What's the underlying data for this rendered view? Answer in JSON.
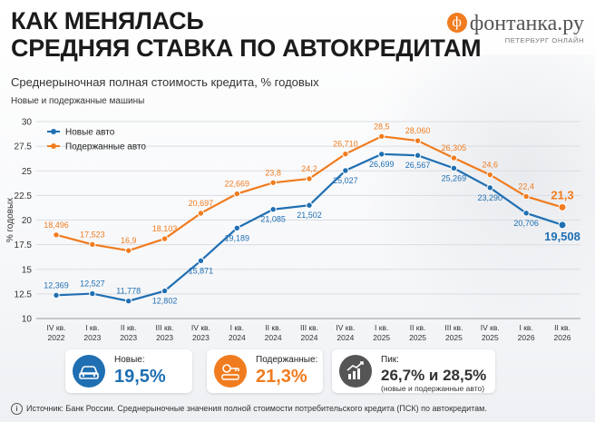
{
  "header": {
    "title_line1": "КАК МЕНЯЛАСЬ",
    "title_line2": "СРЕДНЯЯ СТАВКА ПО АВТОКРЕДИТАМ",
    "subtitle": "Среднерыночная полная стоимость кредита, % годовых",
    "note": "Новые и подержанные машины"
  },
  "logo": {
    "name": "фонтанка.ру",
    "mark": "ф",
    "tagline": "ПЕТЕРБУРГ ОНЛАЙН"
  },
  "chart_data": {
    "type": "line",
    "ylabel": "% годовых",
    "ylim": [
      10,
      30
    ],
    "yticks": [
      "10",
      "12.5",
      "15",
      "17.5",
      "20",
      "22.5",
      "25",
      "27.5",
      "30"
    ],
    "categories": [
      [
        "IV кв.",
        "2022"
      ],
      [
        "I кв.",
        "2023"
      ],
      [
        "II кв.",
        "2023"
      ],
      [
        "III кв.",
        "2023"
      ],
      [
        "IV кв.",
        "2023"
      ],
      [
        "I кв.",
        "2024"
      ],
      [
        "II кв.",
        "2024"
      ],
      [
        "III кв.",
        "2024"
      ],
      [
        "IV кв.",
        "2024"
      ],
      [
        "I кв.",
        "2025"
      ],
      [
        "II кв.",
        "2025"
      ],
      [
        "III кв.",
        "2025"
      ],
      [
        "IV кв.",
        "2025"
      ],
      [
        "I кв.",
        "2026"
      ],
      [
        "II кв.",
        "2026"
      ]
    ],
    "legend_position": "top-left",
    "series": [
      {
        "name": "Новые авто",
        "color": "#1f6fb2",
        "values": [
          12.369,
          12.527,
          11.778,
          12.802,
          15.871,
          19.189,
          21.085,
          21.502,
          25.027,
          26.699,
          26.567,
          25.269,
          23.29,
          20.706,
          19.508
        ],
        "labels": [
          "12,369",
          "12,527",
          "11,778",
          "12,802",
          "15,871",
          "19,189",
          "21,085",
          "21,502",
          "25,027",
          "26,699",
          "26,567",
          "25,269",
          "23,290",
          "20,706",
          "19,508"
        ]
      },
      {
        "name": "Подержанные авто",
        "color": "#f07c1f",
        "values": [
          18.496,
          17.523,
          16.9,
          18.103,
          20.697,
          22.669,
          23.8,
          24.2,
          26.71,
          28.5,
          28.06,
          26.305,
          24.6,
          22.4,
          21.3
        ],
        "labels": [
          "18,496",
          "17,523",
          "16,9",
          "18,103",
          "20,697",
          "22,669",
          "23,8",
          "24,2",
          "26,710",
          "28,5",
          "28,060",
          "26,305",
          "24,6",
          "22,4",
          "21,3"
        ]
      }
    ]
  },
  "cards": [
    {
      "label": "Новые:",
      "value": "19,5%",
      "color": "#1f6fb2",
      "icon": "car-icon"
    },
    {
      "label": "Подержанные:",
      "value": "21,3%",
      "color": "#f07c1f",
      "icon": "car-key-icon"
    },
    {
      "label": "Пик:",
      "value": "26,7% и 28,5%",
      "note": "(новые и подержанные авто)",
      "color": "#555555",
      "icon": "growth-chart-icon"
    }
  ],
  "source": "Источник: Банк России. Среднерыночные значения полной стоимости потребительского кредита (ПСК) по автокредитам."
}
